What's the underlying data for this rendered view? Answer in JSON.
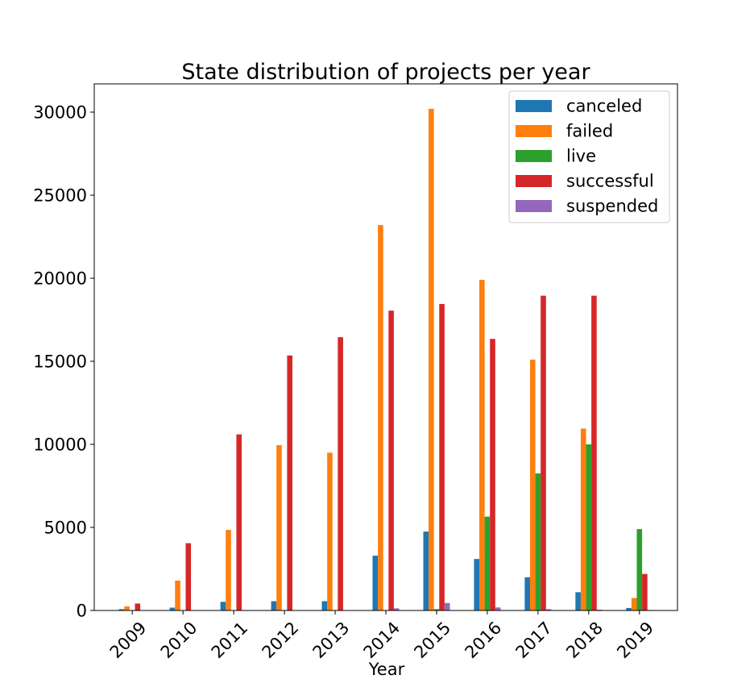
{
  "chart_data": {
    "type": "bar",
    "title": "State distribution of projects per year",
    "xlabel": "Year",
    "ylabel": "",
    "categories": [
      "2009",
      "2010",
      "2011",
      "2012",
      "2013",
      "2014",
      "2015",
      "2016",
      "2017",
      "2018",
      "2019"
    ],
    "ylim": [
      0,
      31700
    ],
    "yticks": [
      0,
      5000,
      10000,
      15000,
      20000,
      25000,
      30000
    ],
    "grid": false,
    "legend_position": "top-right",
    "series": [
      {
        "name": "canceled",
        "color": "#1f77b4",
        "values": [
          80,
          170,
          520,
          560,
          560,
          3300,
          4750,
          3100,
          2000,
          1100,
          150
        ]
      },
      {
        "name": "failed",
        "color": "#ff7f0e",
        "values": [
          250,
          1800,
          4850,
          9950,
          9500,
          23200,
          30200,
          19900,
          15100,
          10950,
          750
        ]
      },
      {
        "name": "live",
        "color": "#2ca02c",
        "values": [
          0,
          0,
          0,
          0,
          0,
          0,
          80,
          5650,
          8250,
          10000,
          4900
        ]
      },
      {
        "name": "successful",
        "color": "#d62728",
        "values": [
          420,
          4050,
          10600,
          15350,
          16450,
          18050,
          18450,
          16350,
          18950,
          18950,
          2200
        ]
      },
      {
        "name": "suspended",
        "color": "#9467bd",
        "values": [
          0,
          20,
          20,
          20,
          20,
          130,
          450,
          180,
          80,
          50,
          30
        ]
      }
    ]
  }
}
